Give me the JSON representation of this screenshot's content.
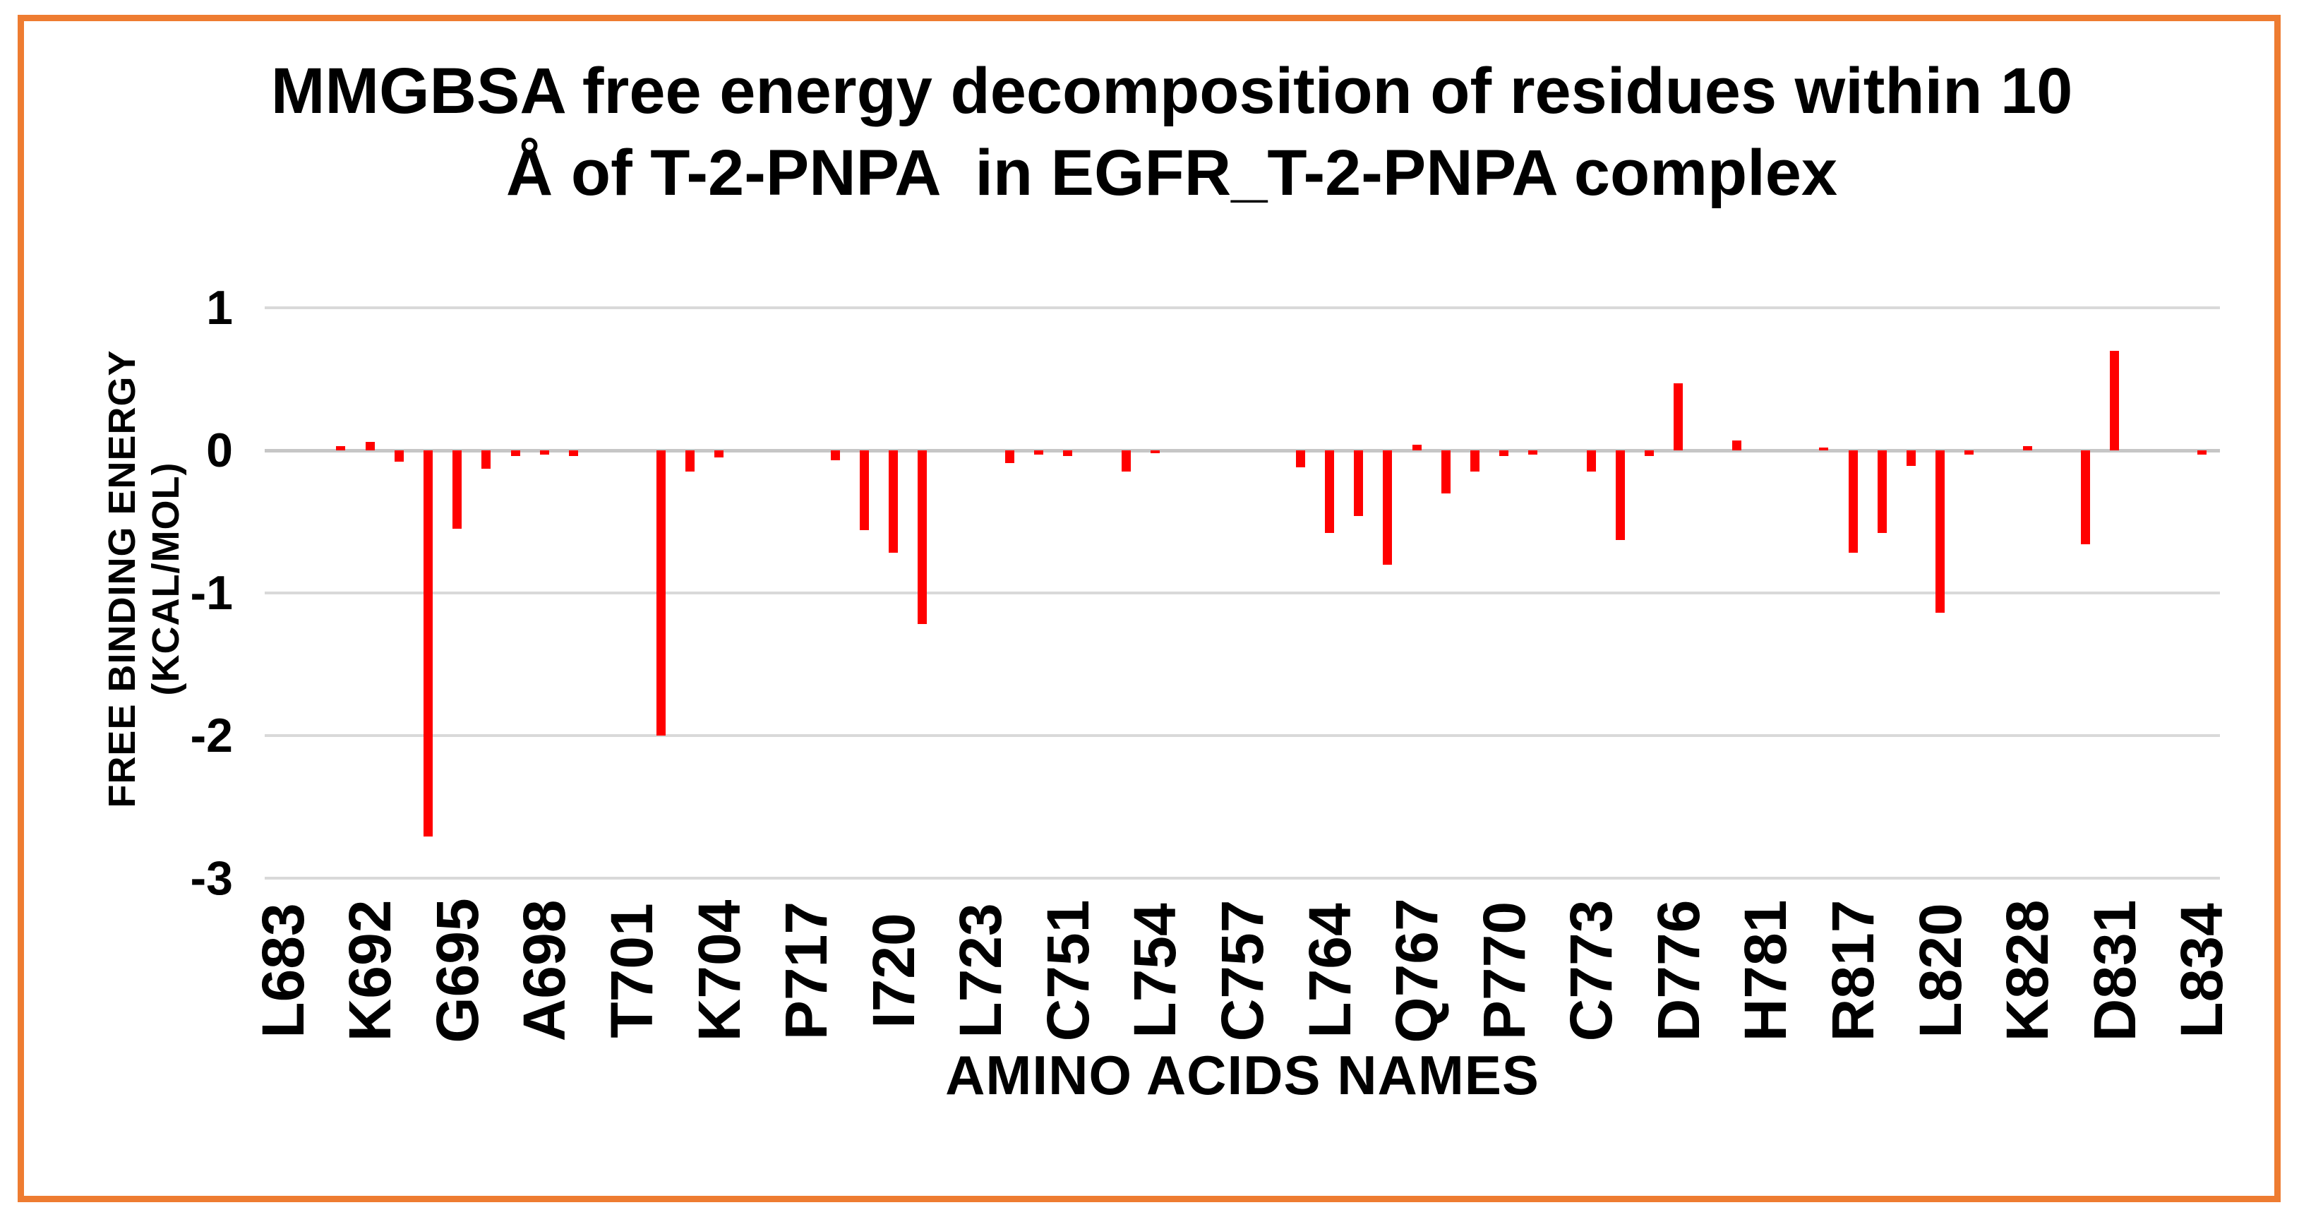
{
  "chart": {
    "title_line1": "MMGBSA free energy decomposition of residues within 10",
    "title_line2": "Å of T-2-PNPA  in EGFR_T-2-PNPA complex",
    "x_axis_title": "AMINO ACIDS NAMES",
    "y_axis_title": "FREE BINDING ENERGY (KCAL/MOL)",
    "colors": {
      "bar": "#FF0000",
      "frame_border": "#EE7C31",
      "gridline": "#D9D9D9",
      "zero_line": "#C6C6C6",
      "text": "#000000"
    }
  },
  "chart_data": {
    "type": "bar",
    "title": "MMGBSA free energy decomposition of residues within 10 Å of T-2-PNPA  in EGFR_T-2-PNPA complex",
    "xlabel": "AMINO ACIDS NAMES",
    "ylabel": "FREE BINDING ENERGY (KCAL/MOL)",
    "ylim": [
      -3,
      1
    ],
    "y_ticks": [
      "1",
      "0",
      "-1",
      "-2",
      "-3"
    ],
    "y_tick_values": [
      1,
      0,
      -1,
      -2,
      -3
    ],
    "grid": true,
    "legend": false,
    "bar_color": "#FF0000",
    "label_every": 3,
    "shown_tick_labels": [
      "L683",
      "K692",
      "G695",
      "A698",
      "T701",
      "K704",
      "P717",
      "I720",
      "L723",
      "C751",
      "L754",
      "C757",
      "L764",
      "Q767",
      "P770",
      "C773",
      "D776",
      "H781",
      "R817",
      "L820",
      "K828",
      "D831",
      "L834"
    ],
    "categories": [
      "L683",
      "",
      "",
      "K692",
      "",
      "",
      "G695",
      "",
      "",
      "A698",
      "",
      "",
      "T701",
      "",
      "",
      "K704",
      "",
      "",
      "P717",
      "",
      "",
      "I720",
      "",
      "",
      "L723",
      "",
      "",
      "C751",
      "",
      "",
      "L754",
      "",
      "",
      "C757",
      "",
      "",
      "L764",
      "",
      "",
      "Q767",
      "",
      "",
      "P770",
      "",
      "",
      "C773",
      "",
      "",
      "D776",
      "",
      "",
      "H781",
      "",
      "",
      "R817",
      "",
      "",
      "L820",
      "",
      "",
      "K828",
      "",
      "",
      "D831",
      "",
      "",
      "L834"
    ],
    "values": [
      0,
      0,
      0.03,
      0.06,
      -0.08,
      -2.71,
      -0.55,
      -0.13,
      -0.04,
      -0.03,
      -0.04,
      0,
      0,
      -2.0,
      -0.15,
      -0.05,
      0,
      0,
      0,
      -0.07,
      -0.56,
      -0.72,
      -1.22,
      0,
      0,
      -0.09,
      -0.03,
      -0.04,
      0,
      -0.15,
      -0.02,
      0,
      0,
      0,
      0,
      -0.12,
      -0.58,
      -0.46,
      -0.8,
      0.04,
      -0.3,
      -0.15,
      -0.04,
      -0.03,
      0,
      -0.15,
      -0.63,
      -0.04,
      0.47,
      0,
      0.07,
      0,
      0,
      0.02,
      -0.72,
      -0.58,
      -0.11,
      -1.14,
      -0.03,
      0,
      0.03,
      0,
      -0.66,
      0.7,
      0,
      0,
      -0.03
    ]
  }
}
